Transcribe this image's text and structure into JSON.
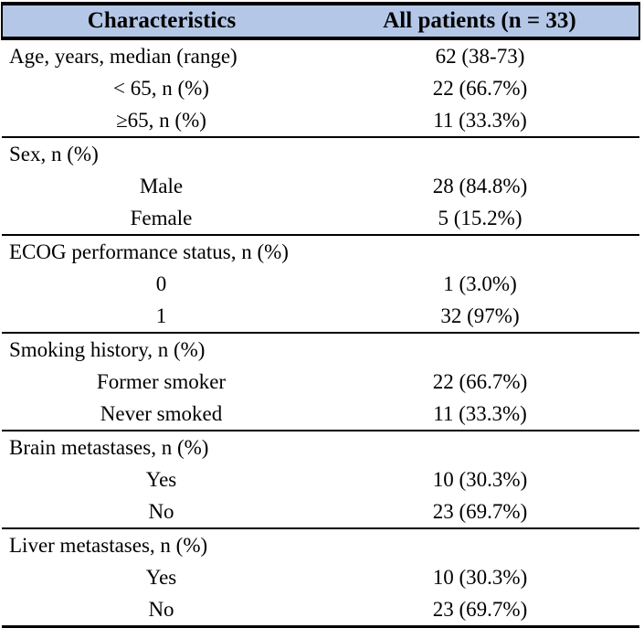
{
  "table": {
    "header": {
      "col1": "Characteristics",
      "col2": "All patients (n = 33)"
    },
    "header_bg": "#b4c7e7",
    "border_color": "#000000",
    "sections": [
      {
        "rows": [
          {
            "label": "Age, years, median (range)",
            "value": "62 (38-73)"
          },
          {
            "label": "< 65, n (%)",
            "value": "22 (66.7%)"
          },
          {
            "label": "≥65, n (%)",
            "value": "11 (33.3%)"
          }
        ]
      },
      {
        "rows": [
          {
            "label": "Sex, n (%)",
            "value": ""
          },
          {
            "label": "Male",
            "value": "28 (84.8%)"
          },
          {
            "label": "Female",
            "value": "5 (15.2%)"
          }
        ]
      },
      {
        "rows": [
          {
            "label": "ECOG performance status, n (%)",
            "value": ""
          },
          {
            "label": "0",
            "value": "1 (3.0%)"
          },
          {
            "label": "1",
            "value": "32 (97%)"
          }
        ]
      },
      {
        "rows": [
          {
            "label": "Smoking history, n (%)",
            "value": ""
          },
          {
            "label": "Former smoker",
            "value": "22 (66.7%)"
          },
          {
            "label": "Never smoked",
            "value": "11 (33.3%)"
          }
        ]
      },
      {
        "rows": [
          {
            "label": "Brain metastases, n (%)",
            "value": ""
          },
          {
            "label": "Yes",
            "value": "10 (30.3%)"
          },
          {
            "label": "No",
            "value": "23 (69.7%)"
          }
        ]
      },
      {
        "rows": [
          {
            "label": "Liver metastases, n (%)",
            "value": ""
          },
          {
            "label": "Yes",
            "value": "10 (30.3%)"
          },
          {
            "label": "No",
            "value": "23 (69.7%)"
          }
        ]
      }
    ]
  }
}
